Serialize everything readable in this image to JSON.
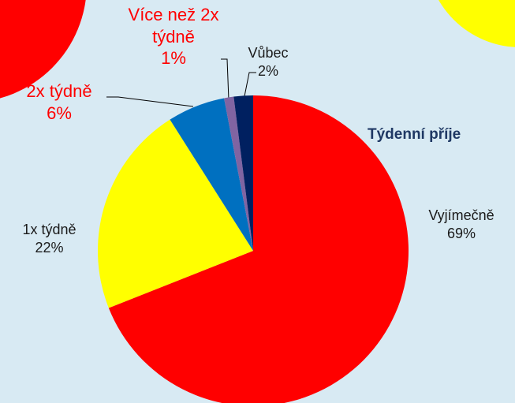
{
  "chart_data": {
    "type": "pie",
    "title": "Týdenní příje",
    "categories": [
      "Vyjímečně",
      "1x týdně",
      "2x týdně",
      "Více než 2x týdně",
      "Vůbec"
    ],
    "values": [
      69,
      22,
      6,
      1,
      2
    ],
    "value_labels": [
      "69%",
      "22%",
      "6%",
      "1%",
      "2%"
    ],
    "colors": [
      "#ff0000",
      "#ffff00",
      "#0070c0",
      "#8064a2",
      "#002060"
    ],
    "label_colors": [
      "#1a1a1a",
      "#1a1a1a",
      "#ff0000",
      "#ff0000",
      "#1a1a1a"
    ]
  }
}
